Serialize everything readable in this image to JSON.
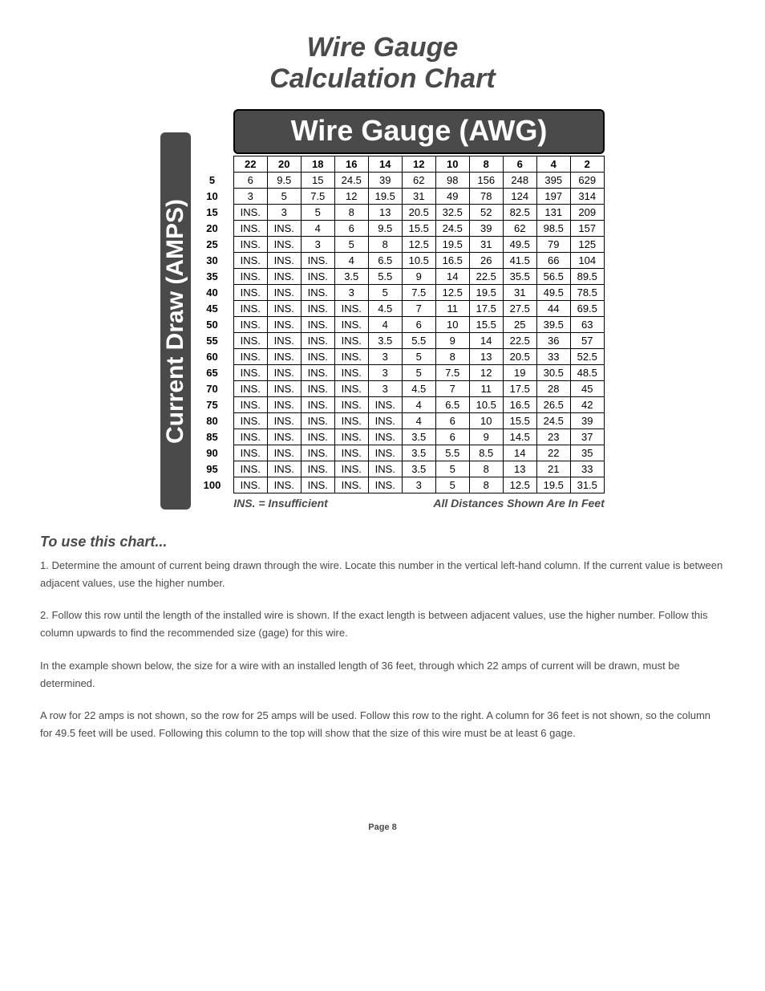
{
  "title_line1": "Wire Gauge",
  "title_line2": "Calculation Chart",
  "top_header": "Wire Gauge (AWG)",
  "side_header": "Current Draw (AMPS)",
  "col_headers": [
    "22",
    "20",
    "18",
    "16",
    "14",
    "12",
    "10",
    "8",
    "6",
    "4",
    "2"
  ],
  "rows": [
    {
      "amp": "5",
      "v": [
        "6",
        "9.5",
        "15",
        "24.5",
        "39",
        "62",
        "98",
        "156",
        "248",
        "395",
        "629"
      ]
    },
    {
      "amp": "10",
      "v": [
        "3",
        "5",
        "7.5",
        "12",
        "19.5",
        "31",
        "49",
        "78",
        "124",
        "197",
        "314"
      ]
    },
    {
      "amp": "15",
      "v": [
        "INS.",
        "3",
        "5",
        "8",
        "13",
        "20.5",
        "32.5",
        "52",
        "82.5",
        "131",
        "209"
      ]
    },
    {
      "amp": "20",
      "v": [
        "INS.",
        "INS.",
        "4",
        "6",
        "9.5",
        "15.5",
        "24.5",
        "39",
        "62",
        "98.5",
        "157"
      ]
    },
    {
      "amp": "25",
      "v": [
        "INS.",
        "INS.",
        "3",
        "5",
        "8",
        "12.5",
        "19.5",
        "31",
        "49.5",
        "79",
        "125"
      ]
    },
    {
      "amp": "30",
      "v": [
        "INS.",
        "INS.",
        "INS.",
        "4",
        "6.5",
        "10.5",
        "16.5",
        "26",
        "41.5",
        "66",
        "104"
      ]
    },
    {
      "amp": "35",
      "v": [
        "INS.",
        "INS.",
        "INS.",
        "3.5",
        "5.5",
        "9",
        "14",
        "22.5",
        "35.5",
        "56.5",
        "89.5"
      ]
    },
    {
      "amp": "40",
      "v": [
        "INS.",
        "INS.",
        "INS.",
        "3",
        "5",
        "7.5",
        "12.5",
        "19.5",
        "31",
        "49.5",
        "78.5"
      ]
    },
    {
      "amp": "45",
      "v": [
        "INS.",
        "INS.",
        "INS.",
        "INS.",
        "4.5",
        "7",
        "11",
        "17.5",
        "27.5",
        "44",
        "69.5"
      ]
    },
    {
      "amp": "50",
      "v": [
        "INS.",
        "INS.",
        "INS.",
        "INS.",
        "4",
        "6",
        "10",
        "15.5",
        "25",
        "39.5",
        "63"
      ]
    },
    {
      "amp": "55",
      "v": [
        "INS.",
        "INS.",
        "INS.",
        "INS.",
        "3.5",
        "5.5",
        "9",
        "14",
        "22.5",
        "36",
        "57"
      ]
    },
    {
      "amp": "60",
      "v": [
        "INS.",
        "INS.",
        "INS.",
        "INS.",
        "3",
        "5",
        "8",
        "13",
        "20.5",
        "33",
        "52.5"
      ]
    },
    {
      "amp": "65",
      "v": [
        "INS.",
        "INS.",
        "INS.",
        "INS.",
        "3",
        "5",
        "7.5",
        "12",
        "19",
        "30.5",
        "48.5"
      ]
    },
    {
      "amp": "70",
      "v": [
        "INS.",
        "INS.",
        "INS.",
        "INS.",
        "3",
        "4.5",
        "7",
        "11",
        "17.5",
        "28",
        "45"
      ]
    },
    {
      "amp": "75",
      "v": [
        "INS.",
        "INS.",
        "INS.",
        "INS.",
        "INS.",
        "4",
        "6.5",
        "10.5",
        "16.5",
        "26.5",
        "42"
      ]
    },
    {
      "amp": "80",
      "v": [
        "INS.",
        "INS.",
        "INS.",
        "INS.",
        "INS.",
        "4",
        "6",
        "10",
        "15.5",
        "24.5",
        "39"
      ]
    },
    {
      "amp": "85",
      "v": [
        "INS.",
        "INS.",
        "INS.",
        "INS.",
        "INS.",
        "3.5",
        "6",
        "9",
        "14.5",
        "23",
        "37"
      ]
    },
    {
      "amp": "90",
      "v": [
        "INS.",
        "INS.",
        "INS.",
        "INS.",
        "INS.",
        "3.5",
        "5.5",
        "8.5",
        "14",
        "22",
        "35"
      ]
    },
    {
      "amp": "95",
      "v": [
        "INS.",
        "INS.",
        "INS.",
        "INS.",
        "INS.",
        "3.5",
        "5",
        "8",
        "13",
        "21",
        "33"
      ]
    },
    {
      "amp": "100",
      "v": [
        "INS.",
        "INS.",
        "INS.",
        "INS.",
        "INS.",
        "3",
        "5",
        "8",
        "12.5",
        "19.5",
        "31.5"
      ]
    }
  ],
  "footnote_left": "INS. = Insufficient",
  "footnote_right": "All Distances Shown Are In Feet",
  "instructions_title": "To use this chart...",
  "instructions": [
    "1. Determine the amount of current being drawn through the wire. Locate this number in the vertical left-hand column. If the current value is between adjacent values, use the higher number.",
    "2. Follow this row until the length of the installed wire is shown. If the exact length is between adjacent values, use the higher number. Follow this column upwards to find the recommended size (gage) for this wire.",
    "In the example shown below, the size for a wire with an installed length of 36 feet, through which 22 amps of current will be drawn, must be determined.",
    "A row for 22 amps is not shown, so the row for 25 amps will be used. Follow this row to the right. A column for 36 feet is not shown, so the column for 49.5 feet will be used. Following  this column to the top will show that the size of this wire must be at least 6 gage."
  ],
  "page_number": "Page 8",
  "colors": {
    "header_bg": "#4a4a4a",
    "header_fg": "#ffffff",
    "text": "#4a4a4a",
    "border": "#000000"
  }
}
